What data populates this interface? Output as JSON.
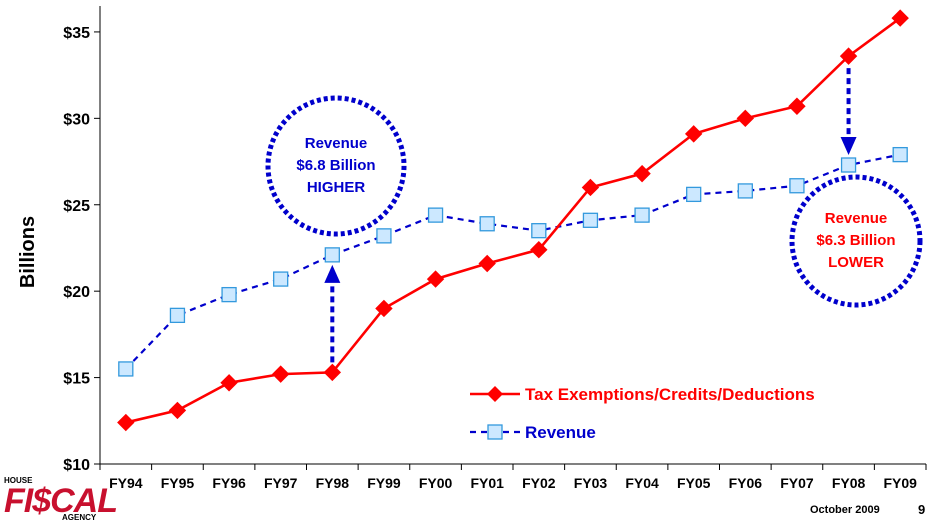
{
  "chart_data": {
    "type": "line",
    "x": [
      "FY94",
      "FY95",
      "FY96",
      "FY97",
      "FY98",
      "FY99",
      "FY00",
      "FY01",
      "FY02",
      "FY03",
      "FY04",
      "FY05",
      "FY06",
      "FY07",
      "FY08",
      "FY09"
    ],
    "series": [
      {
        "name": "Tax Exemptions/Credits/Deductions",
        "color": "#ff0000",
        "values": [
          12.4,
          13.1,
          14.7,
          15.2,
          15.3,
          19.0,
          20.7,
          21.6,
          22.4,
          26.0,
          26.8,
          29.1,
          30.0,
          30.7,
          33.6,
          35.8
        ]
      },
      {
        "name": "Revenue",
        "color": "#0000cc",
        "values": [
          15.5,
          18.6,
          19.8,
          20.7,
          22.1,
          23.2,
          24.4,
          23.9,
          23.5,
          24.1,
          24.4,
          25.6,
          25.8,
          26.1,
          27.3,
          27.9
        ]
      }
    ],
    "yticks": [
      "$10",
      "$15",
      "$20",
      "$25",
      "$30",
      "$35"
    ],
    "ylim": [
      10,
      36.5
    ],
    "ylabel": "Billions",
    "legend_position": "lower-right",
    "callouts": [
      {
        "lines": [
          "Revenue",
          "$6.8 Billion",
          "HIGHER"
        ],
        "color": "#0000cc",
        "year": "FY98"
      },
      {
        "lines": [
          "Revenue",
          "$6.3 Billion",
          "LOWER"
        ],
        "color": "#ff0000",
        "year": "FY08"
      }
    ]
  },
  "footer": {
    "logo_top": "HOUSE",
    "logo_main": "FI$CAL",
    "logo_bottom": "AGENCY",
    "date": "October 2009",
    "page": "9"
  }
}
